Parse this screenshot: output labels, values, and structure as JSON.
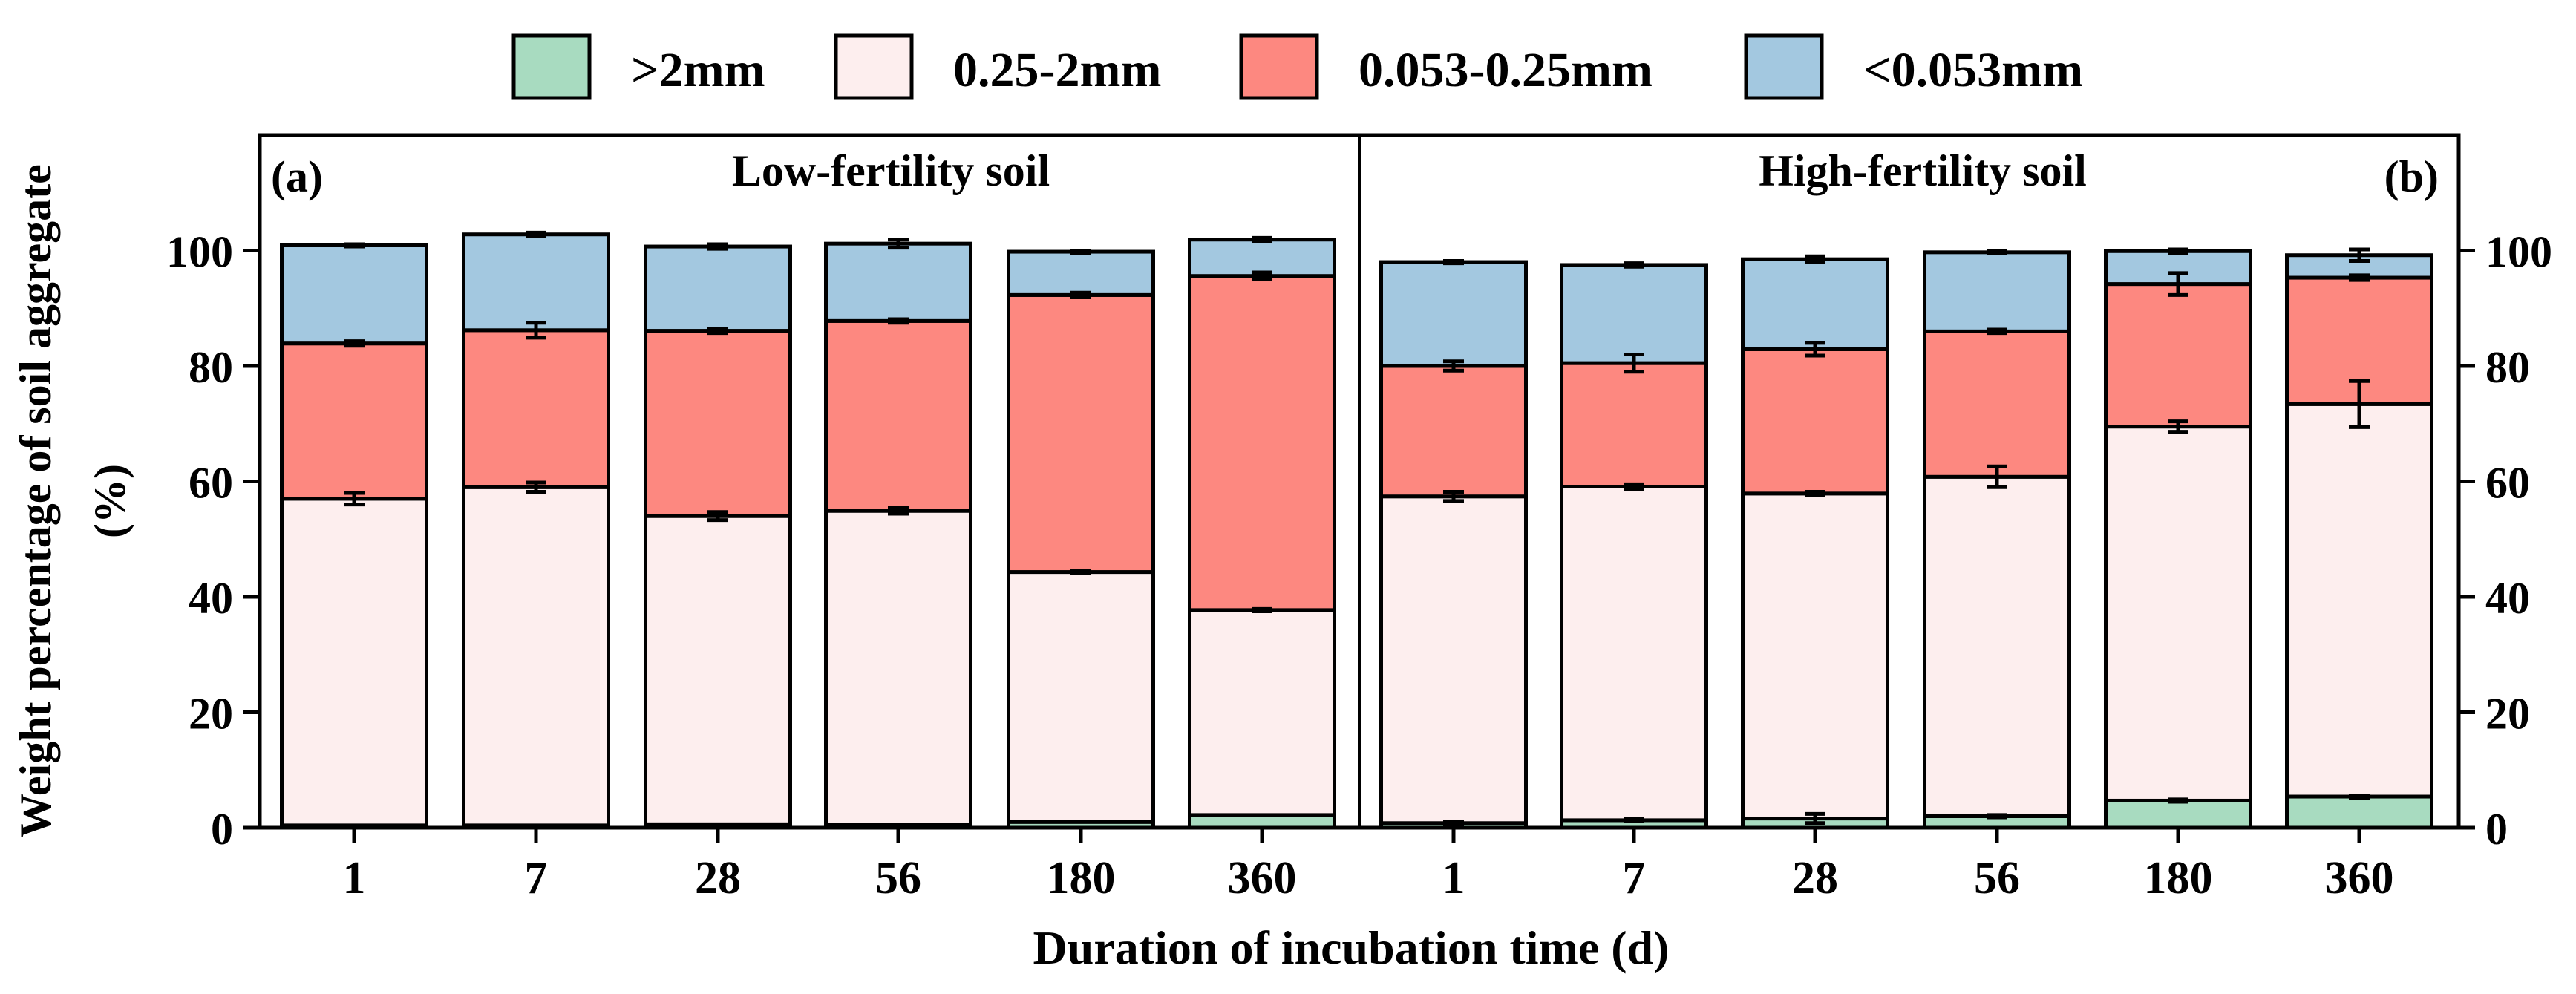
{
  "chart_data": {
    "type": "bar",
    "stacked": true,
    "categories": [
      "1",
      "7",
      "28",
      "56",
      "180",
      "360"
    ],
    "xlabel": "Duration of incubation time (d)",
    "ylabel_line1": "Weight percentage of soil aggregate",
    "ylabel_line2": "(%)",
    "ylim": [
      0,
      120
    ],
    "yticks": [
      "0",
      "20",
      "40",
      "60",
      "80",
      "100"
    ],
    "legend": {
      "position": "top",
      "entries": [
        {
          "label": ">2mm",
          "color": "#a8dbc0"
        },
        {
          "label": "0.25-2mm",
          "color": "#fdeeee"
        },
        {
          "label": "0.053-0.25mm",
          "color": "#fd8880"
        },
        {
          "label": "<0.053mm",
          "color": "#a3c8e0"
        }
      ]
    },
    "panels": [
      {
        "tag": "(a)",
        "title": "Low-fertility soil",
        "series": [
          {
            "name": ">2mm",
            "values": [
              0.4,
              0.4,
              0.6,
              0.5,
              1.0,
              2.2
            ],
            "errors": [
              0,
              0,
              0,
              0,
              0,
              0
            ]
          },
          {
            "name": "0.25-2mm",
            "values": [
              56.6,
              58.6,
              53.4,
              54.4,
              43.3,
              35.5
            ],
            "errors": [
              1.0,
              0.8,
              0.7,
              0.5,
              0.2,
              0.2
            ]
          },
          {
            "name": "0.053-0.25mm",
            "values": [
              26.9,
              27.2,
              32.1,
              32.9,
              48.0,
              57.9
            ],
            "errors": [
              0.4,
              1.3,
              0.4,
              0.3,
              0.4,
              0.6
            ]
          },
          {
            "name": "<0.053mm",
            "values": [
              17.0,
              16.6,
              14.6,
              13.4,
              7.5,
              6.3
            ],
            "errors": [
              0.2,
              0.3,
              0.4,
              0.7,
              0.2,
              0.3
            ]
          }
        ]
      },
      {
        "tag": "(b)",
        "title": "High-fertility soil",
        "series": [
          {
            "name": ">2mm",
            "values": [
              0.8,
              1.3,
              1.6,
              2.0,
              4.7,
              5.4
            ],
            "errors": [
              0.3,
              0.2,
              0.8,
              0.2,
              0.2,
              0.2
            ]
          },
          {
            "name": "0.25-2mm",
            "values": [
              56.6,
              57.8,
              56.3,
              58.8,
              64.8,
              68.0
            ],
            "errors": [
              0.8,
              0.4,
              0.3,
              1.8,
              0.9,
              4.0
            ]
          },
          {
            "name": "0.053-0.25mm",
            "values": [
              22.6,
              21.4,
              25.0,
              25.2,
              24.7,
              21.9
            ],
            "errors": [
              0.8,
              1.5,
              1.1,
              0.3,
              1.9,
              0.4
            ]
          },
          {
            "name": "<0.053mm",
            "values": [
              18.0,
              17.0,
              15.6,
              13.7,
              5.7,
              3.9
            ],
            "errors": [
              0.2,
              0.3,
              0.5,
              0.2,
              0.3,
              1.0
            ]
          }
        ]
      }
    ]
  }
}
